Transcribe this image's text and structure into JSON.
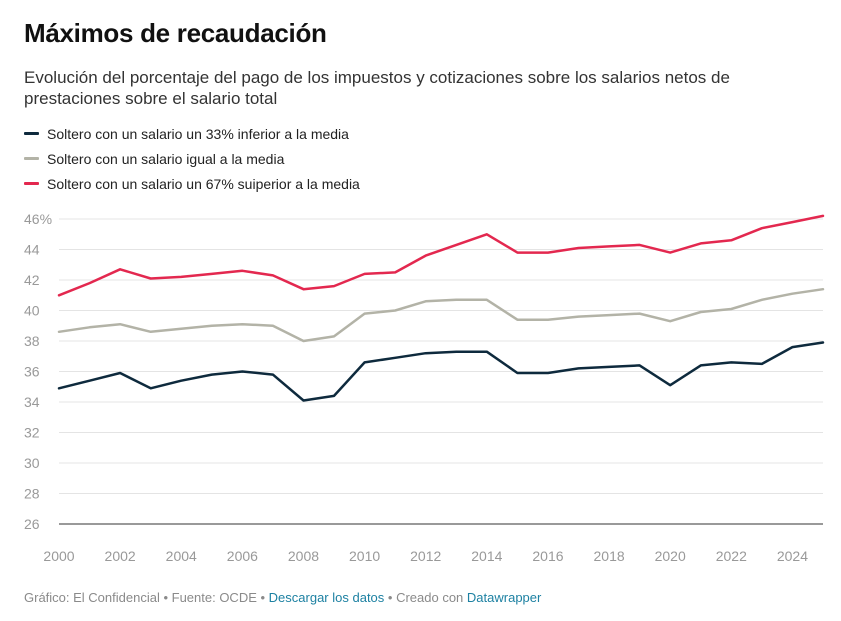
{
  "header": {
    "title": "Máximos de recaudación",
    "subtitle": "Evolución del porcentaje del pago de los impuestos y cotizaciones sobre los salarios netos de prestaciones sobre el salario total"
  },
  "chart_data": {
    "type": "line",
    "title": "Máximos de recaudación",
    "xlabel": "",
    "ylabel": "",
    "ylim": [
      26,
      46
    ],
    "y_ticks": [
      26,
      28,
      30,
      32,
      34,
      36,
      38,
      40,
      42,
      44,
      46
    ],
    "y_tick_labels": [
      "26",
      "28",
      "30",
      "32",
      "34",
      "36",
      "38",
      "40",
      "42",
      "44",
      "46%"
    ],
    "xlim": [
      2000,
      2025
    ],
    "x_ticks": [
      2000,
      2002,
      2004,
      2006,
      2008,
      2010,
      2012,
      2014,
      2016,
      2018,
      2020,
      2022,
      2024
    ],
    "x_tick_labels": [
      "2000",
      "2002",
      "2004",
      "2006",
      "2008",
      "2010",
      "2012",
      "2014",
      "2016",
      "2018",
      "2020",
      "2022",
      "2024"
    ],
    "grid": true,
    "legend_position": "top-left",
    "x": [
      2000,
      2001,
      2002,
      2003,
      2004,
      2005,
      2006,
      2007,
      2008,
      2009,
      2010,
      2011,
      2012,
      2013,
      2014,
      2015,
      2016,
      2017,
      2018,
      2019,
      2020,
      2021,
      2022,
      2023,
      2024,
      2025
    ],
    "series": [
      {
        "name": "Soltero con un salario un 33% inferior a la media",
        "color": "#0e2a3d",
        "values": [
          34.9,
          35.4,
          35.9,
          34.9,
          35.4,
          35.8,
          36.0,
          35.8,
          34.1,
          34.4,
          36.6,
          36.9,
          37.2,
          37.3,
          37.3,
          35.9,
          35.9,
          36.2,
          36.3,
          36.4,
          35.1,
          36.4,
          36.6,
          36.5,
          37.6,
          37.9
        ]
      },
      {
        "name": "Soltero con un salario igual a la media",
        "color": "#b3b3a7",
        "values": [
          38.6,
          38.9,
          39.1,
          38.6,
          38.8,
          39.0,
          39.1,
          39.0,
          38.0,
          38.3,
          39.8,
          40.0,
          40.6,
          40.7,
          40.7,
          39.4,
          39.4,
          39.6,
          39.7,
          39.8,
          39.3,
          39.9,
          40.1,
          40.7,
          41.1,
          41.4
        ]
      },
      {
        "name": "Soltero con un salario un 67% suiperior a la media",
        "color": "#e3284f",
        "values": [
          41.0,
          41.8,
          42.7,
          42.1,
          42.2,
          42.4,
          42.6,
          42.3,
          41.4,
          41.6,
          42.4,
          42.5,
          43.6,
          44.3,
          45.0,
          43.8,
          43.8,
          44.1,
          44.2,
          44.3,
          43.8,
          44.4,
          44.6,
          45.4,
          45.8,
          46.2
        ]
      }
    ]
  },
  "footer": {
    "credit": "Gráfico: El Confidencial",
    "separator": " • ",
    "source": "Fuente: OCDE",
    "download_link": "Descargar los datos",
    "created_with": "Creado con",
    "tool_link": "Datawrapper"
  }
}
